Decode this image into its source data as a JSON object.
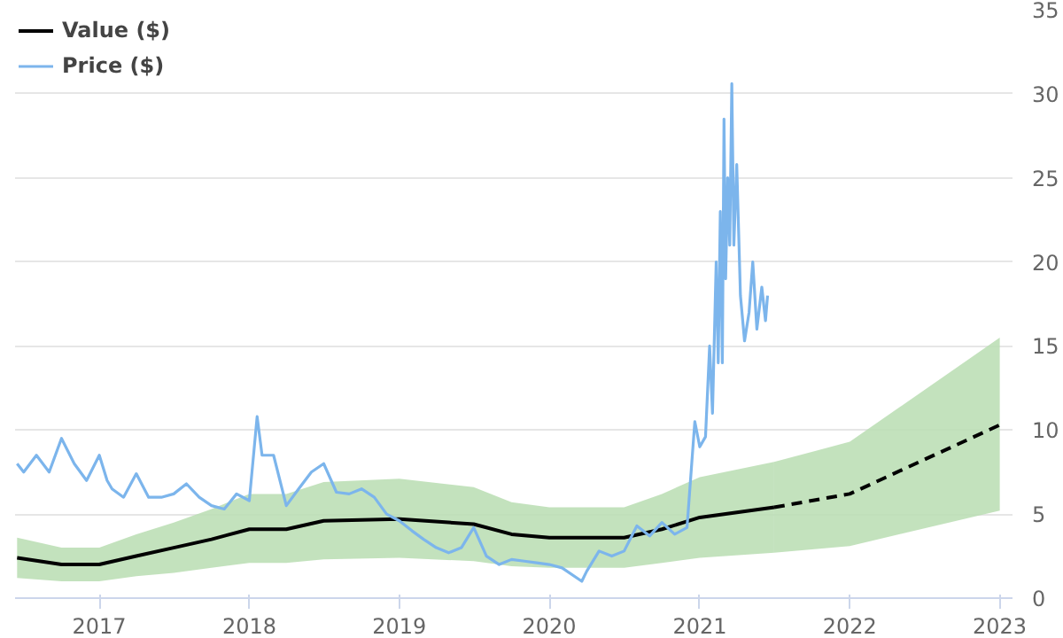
{
  "chart_data": {
    "type": "line",
    "x": [
      "2016-06-15",
      "2016-10",
      "2017-01",
      "2017-04",
      "2017-07",
      "2017-10",
      "2018-01",
      "2018-04",
      "2018-07",
      "2019-01",
      "2019-07",
      "2019-10",
      "2020-01",
      "2020-07",
      "2020-10",
      "2021-01",
      "2021-07"
    ],
    "series": [
      {
        "name": "Value ($)",
        "color": "#000000",
        "values": [
          2.4,
          2.0,
          2.0,
          2.5,
          3.0,
          3.5,
          4.1,
          4.1,
          4.6,
          4.7,
          4.4,
          3.8,
          3.6,
          3.6,
          4.1,
          4.8,
          5.4
        ],
        "lower": [
          1.2,
          1.0,
          1.0,
          1.3,
          1.5,
          1.8,
          2.1,
          2.1,
          2.3,
          2.4,
          2.2,
          1.9,
          1.8,
          1.8,
          2.1,
          2.4,
          2.7
        ],
        "upper": [
          3.6,
          3.0,
          3.0,
          3.8,
          4.5,
          5.3,
          6.2,
          6.2,
          6.9,
          7.1,
          6.6,
          5.7,
          5.4,
          5.4,
          6.2,
          7.2,
          8.1
        ]
      },
      {
        "color": "#000000",
        "line_style": "dashed",
        "x": [
          "2021-07",
          "2022-01",
          "2023-01"
        ],
        "values": [
          5.4,
          6.2,
          10.3
        ],
        "lower": [
          2.7,
          3.1,
          5.2
        ],
        "upper": [
          8.1,
          9.3,
          15.5
        ]
      },
      {
        "name": "Price ($)",
        "color": "#7cb5ec",
        "x": [
          "2016-06-15",
          "2016-07",
          "2016-08",
          "2016-09",
          "2016-10",
          "2016-11",
          "2016-12",
          "2017-01",
          "2017-01-20",
          "2017-02",
          "2017-03",
          "2017-04",
          "2017-05",
          "2017-06",
          "2017-07",
          "2017-08",
          "2017-09",
          "2017-10",
          "2017-11",
          "2017-12",
          "2018-01",
          "2018-01-20",
          "2018-02",
          "2018-03",
          "2018-04",
          "2018-05",
          "2018-06",
          "2018-07",
          "2018-08",
          "2018-09",
          "2018-10",
          "2018-11",
          "2018-12",
          "2019-01",
          "2019-02",
          "2019-03",
          "2019-04",
          "2019-05",
          "2019-06",
          "2019-07",
          "2019-08",
          "2019-09",
          "2019-10",
          "2019-11",
          "2019-12",
          "2020-01",
          "2020-02",
          "2020-03-20",
          "2020-04",
          "2020-05",
          "2020-06",
          "2020-07",
          "2020-08",
          "2020-09",
          "2020-10",
          "2020-11",
          "2020-12",
          "2020-12-20",
          "2021-01",
          "2021-01-15",
          "2021-01-25",
          "2021-02-01",
          "2021-02-10",
          "2021-02-15",
          "2021-02-20",
          "2021-02-25",
          "2021-03-01",
          "2021-03-05",
          "2021-03-10",
          "2021-03-15",
          "2021-03-20",
          "2021-03-25",
          "2021-04-01",
          "2021-04-10",
          "2021-04-20",
          "2021-05-01",
          "2021-05-10",
          "2021-05-20",
          "2021-06-01",
          "2021-06-10",
          "2021-06-15"
        ],
        "values": [
          8.0,
          7.5,
          8.5,
          7.5,
          9.5,
          8.0,
          7.0,
          8.5,
          7.0,
          6.5,
          6.0,
          7.4,
          6.0,
          6.0,
          6.2,
          6.8,
          6.0,
          5.5,
          5.3,
          6.2,
          5.8,
          10.8,
          8.5,
          8.5,
          5.5,
          6.5,
          7.5,
          8.0,
          6.3,
          6.2,
          6.5,
          6.0,
          5.0,
          4.6,
          4.0,
          3.5,
          3.0,
          2.7,
          3.0,
          4.2,
          2.5,
          2.0,
          2.3,
          2.2,
          2.1,
          2.0,
          1.8,
          1.0,
          1.6,
          2.8,
          2.5,
          2.8,
          4.3,
          3.7,
          4.5,
          3.8,
          4.2,
          10.5,
          9.0,
          9.6,
          15.0,
          11.0,
          20.0,
          14.0,
          23.0,
          14.0,
          28.5,
          19.0,
          25.0,
          21.0,
          30.6,
          21.0,
          25.8,
          18.0,
          15.3,
          17.0,
          20.0,
          16.0,
          18.5,
          16.5,
          18.0
        ]
      }
    ],
    "xlim": [
      "2016-06-10",
      "2023-02-01"
    ],
    "xticks": [
      "2017",
      "2018",
      "2019",
      "2020",
      "2021",
      "2022",
      "2023"
    ],
    "ylim": [
      0,
      35
    ],
    "yticks": [
      0,
      5,
      10,
      15,
      20,
      25,
      30,
      35
    ],
    "grid": "y",
    "legend": "top left",
    "marker": "none",
    "line_style": "solid"
  }
}
